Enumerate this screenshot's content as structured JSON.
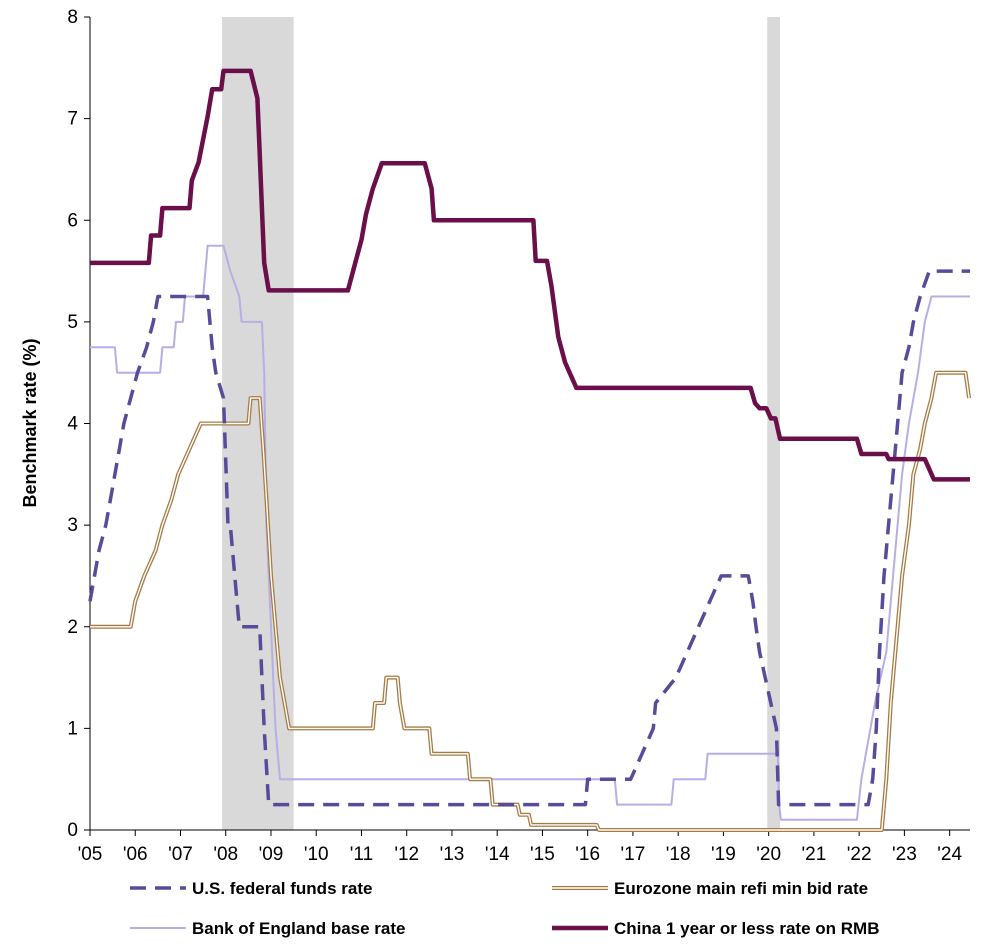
{
  "chart_data": {
    "type": "line",
    "title": "",
    "ylabel": "Benchmark rate (%)",
    "xlabel": "",
    "xlim": [
      2005.0,
      2024.45
    ],
    "ylim": [
      0,
      8
    ],
    "yticks": [
      0,
      1,
      2,
      3,
      4,
      5,
      6,
      7,
      8
    ],
    "xtick_labels": [
      "'05",
      "'06",
      "'07",
      "'08",
      "'09",
      "'10",
      "'11",
      "'12",
      "'13",
      "'14",
      "'15",
      "'16",
      "'17",
      "'18",
      "'19",
      "'20",
      "'21",
      "'22",
      "'23",
      "'24"
    ],
    "grid": false,
    "legend_position": "bottom",
    "recessions": [
      [
        2007.92,
        2009.5
      ],
      [
        2019.97,
        2020.25
      ]
    ],
    "colors": {
      "fed": "#574b9a",
      "ecb": "#a67c45",
      "boe": "#b8aee6",
      "china": "#6a0f49",
      "recession": "#d9d9d9"
    },
    "series": [
      {
        "name": "U.S. federal funds rate",
        "key": "fed",
        "points": [
          [
            2005.0,
            2.25
          ],
          [
            2005.1,
            2.5
          ],
          [
            2005.2,
            2.75
          ],
          [
            2005.35,
            3.0
          ],
          [
            2005.45,
            3.25
          ],
          [
            2005.55,
            3.5
          ],
          [
            2005.65,
            3.75
          ],
          [
            2005.75,
            4.0
          ],
          [
            2005.9,
            4.25
          ],
          [
            2006.05,
            4.5
          ],
          [
            2006.25,
            4.75
          ],
          [
            2006.4,
            5.0
          ],
          [
            2006.5,
            5.25
          ],
          [
            2007.6,
            5.25
          ],
          [
            2007.7,
            4.75
          ],
          [
            2007.78,
            4.5
          ],
          [
            2007.95,
            4.25
          ],
          [
            2008.05,
            3.0
          ],
          [
            2008.1,
            3.0
          ],
          [
            2008.25,
            2.25
          ],
          [
            2008.3,
            2.0
          ],
          [
            2008.75,
            2.0
          ],
          [
            2008.8,
            1.5
          ],
          [
            2008.85,
            1.0
          ],
          [
            2008.95,
            0.25
          ],
          [
            2015.95,
            0.25
          ],
          [
            2016.0,
            0.5
          ],
          [
            2016.95,
            0.5
          ],
          [
            2017.2,
            0.75
          ],
          [
            2017.45,
            1.0
          ],
          [
            2017.5,
            1.25
          ],
          [
            2017.95,
            1.5
          ],
          [
            2018.2,
            1.75
          ],
          [
            2018.45,
            2.0
          ],
          [
            2018.7,
            2.25
          ],
          [
            2018.95,
            2.5
          ],
          [
            2019.55,
            2.5
          ],
          [
            2019.65,
            2.25
          ],
          [
            2019.72,
            2.0
          ],
          [
            2019.8,
            1.75
          ],
          [
            2020.17,
            1.0
          ],
          [
            2020.22,
            0.25
          ],
          [
            2022.2,
            0.25
          ],
          [
            2022.3,
            0.5
          ],
          [
            2022.38,
            1.0
          ],
          [
            2022.45,
            1.75
          ],
          [
            2022.55,
            2.5
          ],
          [
            2022.7,
            3.25
          ],
          [
            2022.85,
            4.0
          ],
          [
            2022.95,
            4.5
          ],
          [
            2023.1,
            4.75
          ],
          [
            2023.2,
            5.0
          ],
          [
            2023.35,
            5.25
          ],
          [
            2023.55,
            5.5
          ],
          [
            2024.45,
            5.5
          ]
        ]
      },
      {
        "name": "Eurozone main refi min bid rate",
        "key": "ecb",
        "points": [
          [
            2005.0,
            2.0
          ],
          [
            2005.9,
            2.0
          ],
          [
            2006.0,
            2.25
          ],
          [
            2006.2,
            2.5
          ],
          [
            2006.45,
            2.75
          ],
          [
            2006.6,
            3.0
          ],
          [
            2006.8,
            3.25
          ],
          [
            2006.95,
            3.5
          ],
          [
            2007.2,
            3.75
          ],
          [
            2007.45,
            4.0
          ],
          [
            2008.5,
            4.0
          ],
          [
            2008.55,
            4.25
          ],
          [
            2008.75,
            4.25
          ],
          [
            2008.83,
            3.75
          ],
          [
            2008.9,
            3.25
          ],
          [
            2009.0,
            2.5
          ],
          [
            2009.1,
            2.0
          ],
          [
            2009.2,
            1.5
          ],
          [
            2009.3,
            1.25
          ],
          [
            2009.4,
            1.0
          ],
          [
            2011.25,
            1.0
          ],
          [
            2011.3,
            1.25
          ],
          [
            2011.5,
            1.25
          ],
          [
            2011.55,
            1.5
          ],
          [
            2011.8,
            1.5
          ],
          [
            2011.85,
            1.25
          ],
          [
            2011.95,
            1.0
          ],
          [
            2012.5,
            1.0
          ],
          [
            2012.55,
            0.75
          ],
          [
            2013.35,
            0.75
          ],
          [
            2013.4,
            0.5
          ],
          [
            2013.85,
            0.5
          ],
          [
            2013.9,
            0.25
          ],
          [
            2014.45,
            0.25
          ],
          [
            2014.5,
            0.15
          ],
          [
            2014.7,
            0.15
          ],
          [
            2014.75,
            0.05
          ],
          [
            2016.2,
            0.05
          ],
          [
            2016.25,
            0.0
          ],
          [
            2022.5,
            0.0
          ],
          [
            2022.6,
            0.5
          ],
          [
            2022.7,
            1.25
          ],
          [
            2022.85,
            2.0
          ],
          [
            2022.95,
            2.5
          ],
          [
            2023.1,
            3.0
          ],
          [
            2023.2,
            3.5
          ],
          [
            2023.35,
            3.75
          ],
          [
            2023.45,
            4.0
          ],
          [
            2023.6,
            4.25
          ],
          [
            2023.7,
            4.5
          ],
          [
            2024.35,
            4.5
          ],
          [
            2024.43,
            4.25
          ]
        ]
      },
      {
        "name": "Bank of England base rate",
        "key": "boe",
        "points": [
          [
            2005.0,
            4.75
          ],
          [
            2005.55,
            4.75
          ],
          [
            2005.6,
            4.5
          ],
          [
            2006.55,
            4.5
          ],
          [
            2006.6,
            4.75
          ],
          [
            2006.85,
            4.75
          ],
          [
            2006.9,
            5.0
          ],
          [
            2007.05,
            5.0
          ],
          [
            2007.1,
            5.25
          ],
          [
            2007.5,
            5.25
          ],
          [
            2007.55,
            5.5
          ],
          [
            2007.6,
            5.75
          ],
          [
            2007.95,
            5.75
          ],
          [
            2008.1,
            5.5
          ],
          [
            2008.3,
            5.25
          ],
          [
            2008.35,
            5.0
          ],
          [
            2008.8,
            5.0
          ],
          [
            2008.85,
            4.5
          ],
          [
            2008.9,
            3.0
          ],
          [
            2009.0,
            2.0
          ],
          [
            2009.05,
            1.5
          ],
          [
            2009.1,
            1.0
          ],
          [
            2009.2,
            0.5
          ],
          [
            2016.6,
            0.5
          ],
          [
            2016.65,
            0.25
          ],
          [
            2017.85,
            0.25
          ],
          [
            2017.9,
            0.5
          ],
          [
            2018.6,
            0.5
          ],
          [
            2018.65,
            0.75
          ],
          [
            2020.2,
            0.75
          ],
          [
            2020.23,
            0.25
          ],
          [
            2020.27,
            0.1
          ],
          [
            2021.95,
            0.1
          ],
          [
            2022.05,
            0.5
          ],
          [
            2022.15,
            0.75
          ],
          [
            2022.35,
            1.25
          ],
          [
            2022.6,
            1.75
          ],
          [
            2022.7,
            2.25
          ],
          [
            2022.85,
            3.0
          ],
          [
            2022.95,
            3.5
          ],
          [
            2023.1,
            4.0
          ],
          [
            2023.3,
            4.5
          ],
          [
            2023.45,
            5.0
          ],
          [
            2023.6,
            5.25
          ],
          [
            2024.45,
            5.25
          ]
        ]
      },
      {
        "name": "China 1 year or less rate on RMB",
        "key": "china",
        "points": [
          [
            2005.0,
            5.58
          ],
          [
            2006.3,
            5.58
          ],
          [
            2006.35,
            5.85
          ],
          [
            2006.55,
            5.85
          ],
          [
            2006.6,
            6.12
          ],
          [
            2007.2,
            6.12
          ],
          [
            2007.25,
            6.39
          ],
          [
            2007.4,
            6.57
          ],
          [
            2007.6,
            7.02
          ],
          [
            2007.7,
            7.29
          ],
          [
            2007.9,
            7.29
          ],
          [
            2007.95,
            7.47
          ],
          [
            2008.55,
            7.47
          ],
          [
            2008.7,
            7.2
          ],
          [
            2008.75,
            6.66
          ],
          [
            2008.8,
            6.12
          ],
          [
            2008.85,
            5.58
          ],
          [
            2008.95,
            5.31
          ],
          [
            2010.7,
            5.31
          ],
          [
            2010.85,
            5.56
          ],
          [
            2011.0,
            5.81
          ],
          [
            2011.1,
            6.06
          ],
          [
            2011.25,
            6.31
          ],
          [
            2011.45,
            6.56
          ],
          [
            2012.4,
            6.56
          ],
          [
            2012.55,
            6.31
          ],
          [
            2012.6,
            6.0
          ],
          [
            2014.8,
            6.0
          ],
          [
            2014.85,
            5.6
          ],
          [
            2015.1,
            5.6
          ],
          [
            2015.2,
            5.35
          ],
          [
            2015.35,
            4.85
          ],
          [
            2015.5,
            4.6
          ],
          [
            2015.75,
            4.35
          ],
          [
            2019.6,
            4.35
          ],
          [
            2019.7,
            4.2
          ],
          [
            2019.8,
            4.15
          ],
          [
            2019.95,
            4.15
          ],
          [
            2020.05,
            4.05
          ],
          [
            2020.15,
            4.05
          ],
          [
            2020.25,
            3.85
          ],
          [
            2021.95,
            3.85
          ],
          [
            2022.05,
            3.7
          ],
          [
            2022.6,
            3.7
          ],
          [
            2022.65,
            3.65
          ],
          [
            2023.45,
            3.65
          ],
          [
            2023.55,
            3.55
          ],
          [
            2023.65,
            3.45
          ],
          [
            2024.45,
            3.45
          ]
        ]
      }
    ]
  }
}
